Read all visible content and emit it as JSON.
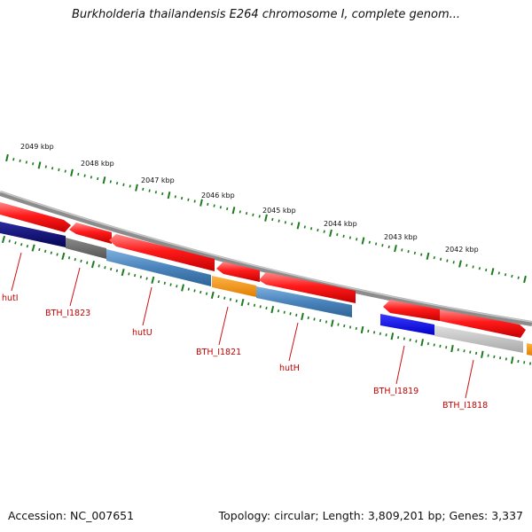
{
  "title": "Burkholderia thailandensis E264 chromosome I, complete genom...",
  "footer": {
    "accession": "Accession: NC_007651",
    "stats": "Topology: circular; Length: 3,809,201 bp; Genes: 3,337"
  },
  "scale_labels": [
    "2049 kbp",
    "2048 kbp",
    "2047 kbp",
    "2046 kbp",
    "2045 kbp",
    "2044 kbp",
    "2043 kbp",
    "2042 kbp"
  ],
  "genes": [
    {
      "name": "hutI"
    },
    {
      "name": "BTH_I1823"
    },
    {
      "name": "hutU"
    },
    {
      "name": "BTH_I1821"
    },
    {
      "name": "hutH"
    },
    {
      "name": "BTH_I1819"
    },
    {
      "name": "BTH_I1818"
    }
  ],
  "colors": {
    "cds": "#ee1111",
    "navy": "#0a0a78",
    "gray": "#6e6e6e",
    "steel": "#4a82b8",
    "orange": "#f2900c",
    "blue": "#0d0de6",
    "light_gray": "#c3c3c3",
    "backbone": "#8c8c8c",
    "ticks": "#1e7a1e",
    "label": "#c00000"
  }
}
